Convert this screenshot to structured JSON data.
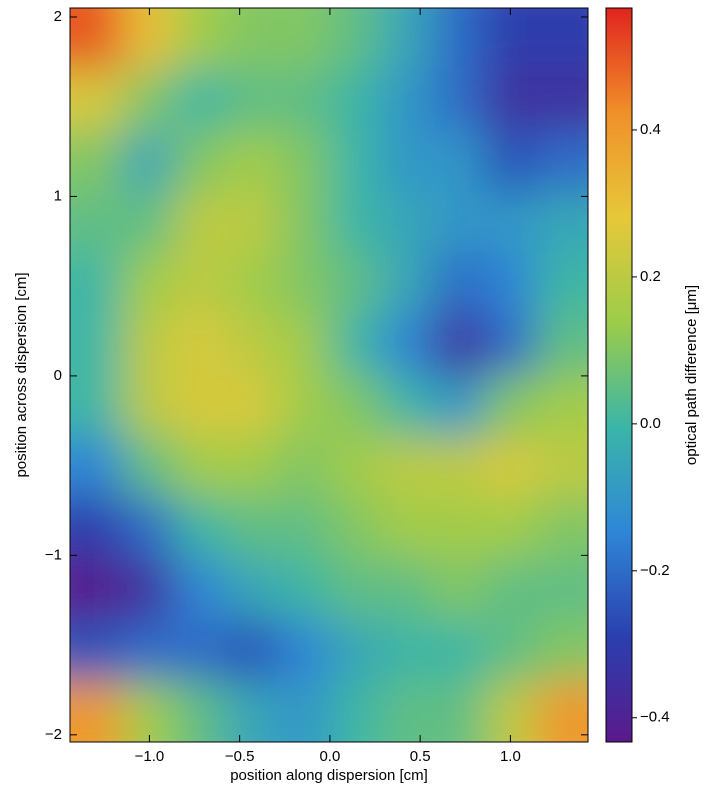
{
  "chart_data": {
    "type": "heatmap",
    "xlabel": "position along dispersion [cm]",
    "ylabel": "position across dispersion [cm]",
    "colorbar_label": "optical path difference [μm]",
    "xlim": [
      -1.44,
      1.43
    ],
    "ylim": [
      -2.04,
      2.05
    ],
    "xticks": [
      {
        "value": -1,
        "label": "−1.0"
      },
      {
        "value": -0.5,
        "label": "−0.5"
      },
      {
        "value": 0,
        "label": "0.0"
      },
      0.5,
      {
        "value": 1,
        "label": "1.0"
      }
    ],
    "yticks": [
      {
        "value": -2,
        "label": "−2"
      },
      {
        "value": -1,
        "label": "−1"
      },
      0,
      1,
      2
    ],
    "clim": [
      -0.433,
      0.566
    ],
    "cticks": [
      {
        "value": -0.4,
        "label": "−0.4"
      },
      {
        "value": -0.2,
        "label": "−0.2"
      },
      {
        "value": 0,
        "label": "0.0"
      },
      0.2,
      0.4
    ],
    "colormap": [
      "#5a1a8a",
      "#2b3fae",
      "#2f86d6",
      "#3bb5a8",
      "#9ccc4a",
      "#e6c83a",
      "#f0902a",
      "#e0241f"
    ],
    "z": [
      [
        0.5,
        0.3,
        0.15,
        0.1,
        0.1,
        0.05,
        -0.05,
        -0.2,
        -0.3,
        -0.3
      ],
      [
        0.25,
        0.1,
        0.0,
        0.05,
        0.05,
        0.0,
        -0.1,
        -0.2,
        -0.35,
        -0.35
      ],
      [
        0.1,
        -0.05,
        0.1,
        0.15,
        0.1,
        0.0,
        -0.1,
        -0.1,
        -0.25,
        -0.2
      ],
      [
        0.05,
        0.05,
        0.2,
        0.2,
        0.1,
        0.0,
        -0.05,
        -0.1,
        -0.1,
        -0.05
      ],
      [
        0.0,
        0.15,
        0.2,
        0.15,
        0.1,
        0.05,
        -0.05,
        -0.2,
        -0.15,
        0.0
      ],
      [
        0.0,
        0.2,
        0.25,
        0.2,
        0.15,
        0.0,
        -0.15,
        -0.35,
        -0.2,
        0.05
      ],
      [
        0.0,
        0.2,
        0.25,
        0.25,
        0.15,
        0.1,
        0.0,
        -0.1,
        0.1,
        0.15
      ],
      [
        -0.15,
        0.05,
        0.15,
        0.15,
        0.1,
        0.15,
        0.2,
        0.2,
        0.25,
        0.2
      ],
      [
        -0.3,
        -0.2,
        0.0,
        0.05,
        0.05,
        0.1,
        0.15,
        0.15,
        0.15,
        0.1
      ],
      [
        -0.42,
        -0.35,
        -0.15,
        -0.05,
        0.0,
        0.05,
        0.05,
        0.1,
        0.05,
        0.05
      ],
      [
        -0.25,
        -0.2,
        -0.2,
        -0.25,
        -0.15,
        -0.05,
        0.0,
        0.0,
        0.05,
        0.1
      ],
      [
        0.4,
        0.15,
        0.05,
        -0.05,
        -0.1,
        0.0,
        0.05,
        0.05,
        0.2,
        0.4
      ]
    ]
  }
}
